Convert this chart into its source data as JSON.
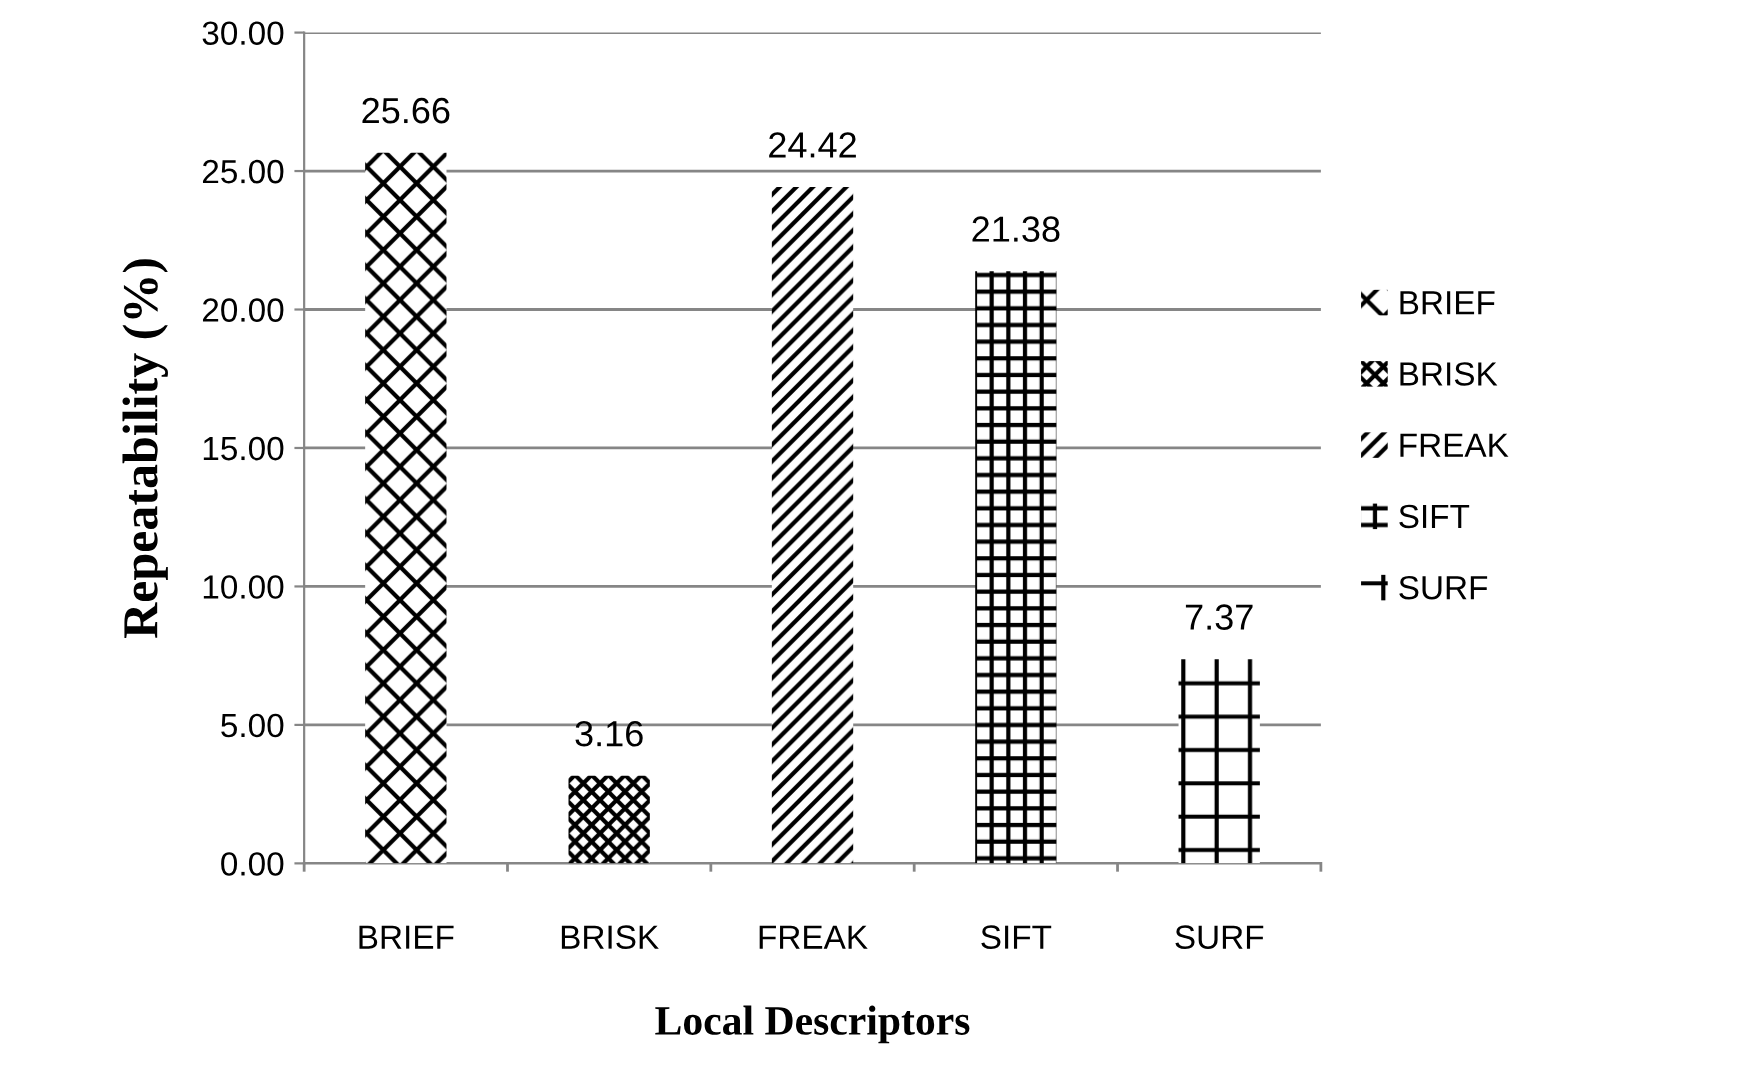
{
  "chart_data": {
    "type": "bar",
    "xlabel": "Local Descriptors",
    "ylabel": "Repeatability (%)",
    "categories": [
      "BRIEF",
      "BRISK",
      "FREAK",
      "SIFT",
      "SURF"
    ],
    "series": [
      {
        "name": "BRIEF",
        "color": "#000000",
        "values": [
          25.66,
          null,
          null,
          null,
          null
        ]
      },
      {
        "name": "BRISK",
        "color": "#000000",
        "values": [
          null,
          3.16,
          null,
          null,
          null
        ]
      },
      {
        "name": "FREAK",
        "color": "#000000",
        "values": [
          null,
          null,
          24.42,
          null,
          null
        ]
      },
      {
        "name": "SIFT",
        "color": "#000000",
        "values": [
          null,
          null,
          null,
          21.38,
          null
        ]
      },
      {
        "name": "SURF",
        "color": "#000000",
        "values": [
          null,
          null,
          null,
          null,
          7.37
        ]
      }
    ],
    "ylim": [
      0,
      30
    ],
    "yticks": [
      {
        "value": 0,
        "label": "0.00"
      },
      {
        "value": 5,
        "label": "5.00"
      },
      {
        "value": 10,
        "label": "10.00"
      },
      {
        "value": 15,
        "label": "15.00"
      },
      {
        "value": 20,
        "label": "20.00"
      },
      {
        "value": 25,
        "label": "25.00"
      },
      {
        "value": 30,
        "label": "30.00"
      }
    ],
    "grid": "y",
    "legend": "right",
    "data_labels": true
  }
}
